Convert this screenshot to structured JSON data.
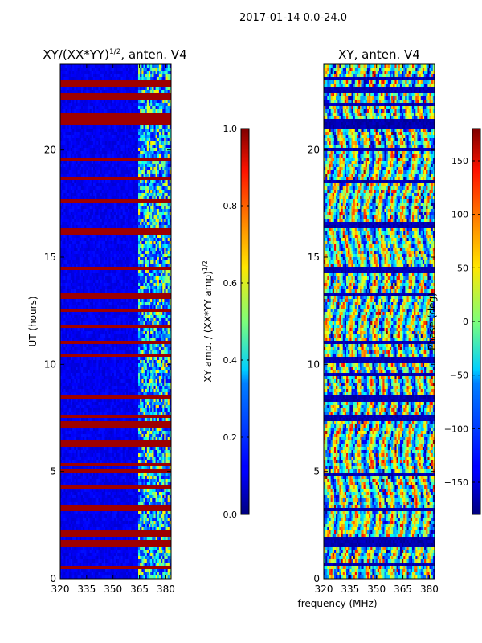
{
  "suptitle": "2017-01-14 0.0-24.0",
  "shared_xlabel": "frequency (MHz)",
  "chart_data": [
    {
      "type": "heatmap",
      "title_main": "XY/(XX*YY)",
      "title_exp": "1/2",
      "title_tail": ", anten. V4",
      "xlabel": "",
      "ylabel": "UT (hours)",
      "xlim": [
        320,
        383
      ],
      "ylim": [
        0,
        24
      ],
      "xticks": [
        "320",
        "335",
        "350",
        "365",
        "380"
      ],
      "yticks": [
        "0",
        "5",
        "10",
        "15",
        "20"
      ],
      "colorbar": {
        "label": "XY amp. / (XX*YY amp)",
        "label_exp": "1/2",
        "range": [
          0.0,
          1.0
        ],
        "ticks": [
          "0.0",
          "0.2",
          "0.4",
          "0.6",
          "0.8",
          "1.0"
        ],
        "colormap": "jet"
      },
      "description_values": {
        "background_level": 0.1,
        "active_band_start_mhz": 364,
        "saturated_rows_hours": [
          0.55,
          1.6,
          1.75,
          2.1,
          3.3,
          4.3,
          5.0,
          5.3,
          6.3,
          7.2,
          7.6,
          8.5,
          10.4,
          11.0,
          11.8,
          12.5,
          13.2,
          14.5,
          16.2,
          17.6,
          18.7,
          19.6,
          21.3,
          21.5,
          21.7,
          22.5,
          23.1
        ]
      }
    },
    {
      "type": "heatmap",
      "title": "XY, anten. V4",
      "xlabel": "frequency (MHz)",
      "ylabel": "",
      "xlim": [
        320,
        383
      ],
      "ylim": [
        0,
        24
      ],
      "xticks": [
        "320",
        "335",
        "350",
        "365",
        "380"
      ],
      "yticks": [
        "0",
        "5",
        "10",
        "15",
        "20"
      ],
      "colorbar": {
        "label": "Phase (deg)",
        "range": [
          -180,
          180
        ],
        "ticks": [
          "−150",
          "−100",
          "−50",
          "0",
          "50",
          "100",
          "150"
        ],
        "colormap": "jet"
      },
      "description_values": {
        "dark_rows_hours": [
          0.7,
          1.6,
          1.8,
          3.2,
          4.9,
          7.5,
          8.4,
          9.5,
          10.2,
          11.0,
          13.3,
          14.4,
          16.5,
          18.5,
          20.0,
          21.1,
          21.3,
          22.1,
          22.8,
          23.3
        ]
      }
    }
  ]
}
